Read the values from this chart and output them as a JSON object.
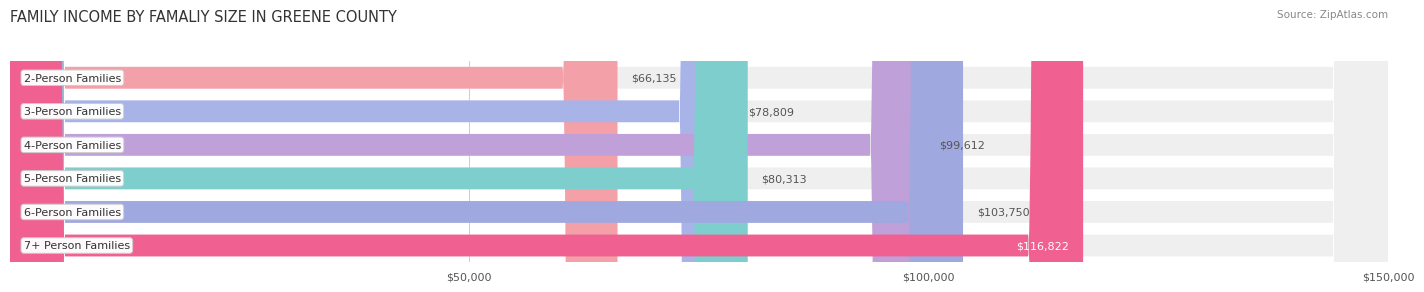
{
  "title": "FAMILY INCOME BY FAMALIY SIZE IN GREENE COUNTY",
  "source": "Source: ZipAtlas.com",
  "categories": [
    "2-Person Families",
    "3-Person Families",
    "4-Person Families",
    "5-Person Families",
    "6-Person Families",
    "7+ Person Families"
  ],
  "values": [
    66135,
    78809,
    99612,
    80313,
    103750,
    116822
  ],
  "bar_colors": [
    "#f4a0a8",
    "#a8b4e8",
    "#c0a0d8",
    "#7ecece",
    "#a0a8e0",
    "#f06090"
  ],
  "bar_bg_color": "#efefef",
  "value_labels": [
    "$66,135",
    "$78,809",
    "$99,612",
    "$80,313",
    "$103,750",
    "$116,822"
  ],
  "xmax": 150000,
  "xticks": [
    50000,
    100000,
    150000
  ],
  "xtick_labels": [
    "$50,000",
    "$100,000",
    "$150,000"
  ],
  "background_color": "#ffffff",
  "bar_height": 0.65,
  "title_fontsize": 10.5,
  "label_fontsize": 8,
  "value_fontsize": 8,
  "tick_fontsize": 8,
  "source_fontsize": 7.5
}
